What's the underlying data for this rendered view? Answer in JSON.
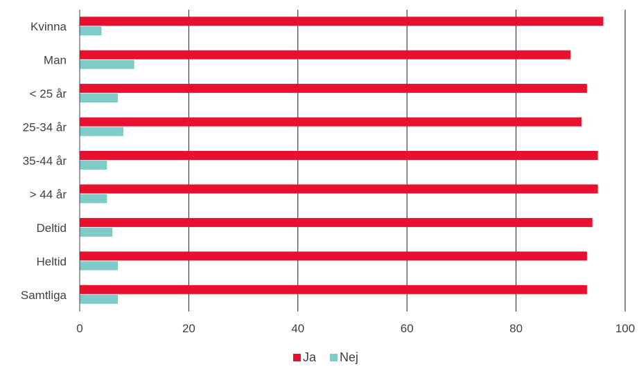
{
  "chart_data": {
    "type": "bar",
    "orientation": "horizontal",
    "title": "",
    "xlabel": "",
    "ylabel": "",
    "categories": [
      "Kvinna",
      "Man",
      "< 25 år",
      "25-34 år",
      "35-44 år",
      "> 44 år",
      "Deltid",
      "Heltid",
      "Samtliga"
    ],
    "series": [
      {
        "name": "Ja",
        "color": "#e8102e",
        "values": [
          96,
          90,
          93,
          92,
          95,
          95,
          94,
          93,
          93
        ]
      },
      {
        "name": "Nej",
        "color": "#7ecbc8",
        "values": [
          4,
          10,
          7,
          8,
          5,
          5,
          6,
          7,
          7
        ]
      }
    ],
    "xlim": [
      0,
      100
    ],
    "xticks": [
      0,
      20,
      40,
      60,
      80,
      100
    ],
    "grid": true,
    "legend_position": "bottom-center"
  }
}
